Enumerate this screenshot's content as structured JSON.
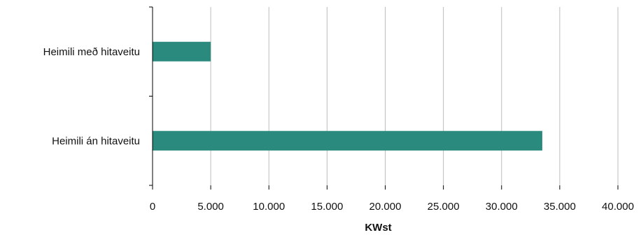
{
  "chart_data": {
    "type": "bar",
    "orientation": "horizontal",
    "categories": [
      "Heimili með hitaveitu",
      "Heimili án hitaveitu"
    ],
    "values": [
      5000,
      33500
    ],
    "xlabel": "KWst",
    "ylabel": "",
    "xlim": [
      0,
      40000
    ],
    "xticks": [
      "0",
      "5.000",
      "10.000",
      "15.000",
      "20.000",
      "25.000",
      "30.000",
      "35.000",
      "40.000"
    ],
    "grid": "vertical",
    "legend": "none",
    "bar_color": "#2a8a7e"
  }
}
